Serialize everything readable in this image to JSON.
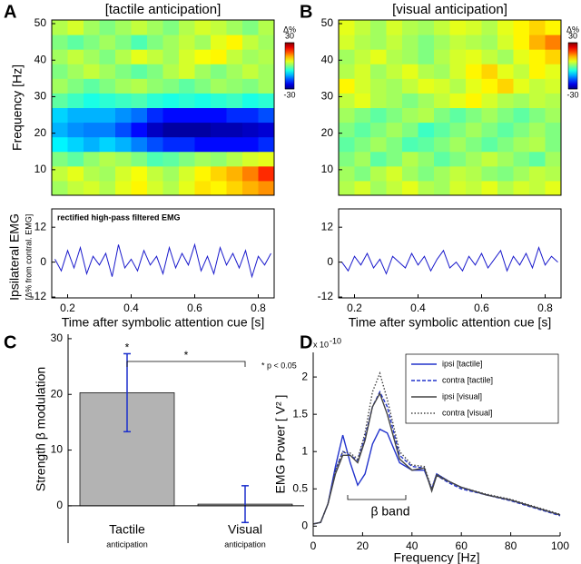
{
  "chart_data": [
    {
      "type": "heatmap",
      "panel": "A",
      "title": "[tactile anticipation]",
      "ylabel": "Frequency [Hz]",
      "x_edges": [
        0.15,
        0.2,
        0.25,
        0.3,
        0.35,
        0.4,
        0.45,
        0.5,
        0.55,
        0.6,
        0.65,
        0.7,
        0.75,
        0.8,
        0.85
      ],
      "y_edges": [
        3,
        7,
        11,
        15,
        19,
        23,
        27,
        31,
        35,
        39,
        43,
        47,
        51
      ],
      "ylim": [
        3,
        51
      ],
      "yticks": [
        10,
        20,
        30,
        40,
        50
      ],
      "clim": [
        -30,
        30
      ],
      "cticks": [
        30,
        -30
      ],
      "colorbar_label": "Δ%",
      "z": [
        [
          2,
          4,
          5,
          3,
          6,
          8,
          5,
          3,
          6,
          9,
          8,
          10,
          12,
          14
        ],
        [
          4,
          6,
          3,
          2,
          5,
          7,
          4,
          2,
          5,
          8,
          10,
          12,
          15,
          20
        ],
        [
          0,
          -2,
          1,
          3,
          2,
          0,
          -3,
          -2,
          0,
          2,
          1,
          3,
          5,
          6
        ],
        [
          -8,
          -10,
          -12,
          -10,
          -12,
          -15,
          -18,
          -20,
          -20,
          -22,
          -22,
          -22,
          -22,
          -20
        ],
        [
          -12,
          -14,
          -15,
          -15,
          -18,
          -22,
          -26,
          -28,
          -28,
          -28,
          -27,
          -27,
          -26,
          -25
        ],
        [
          -10,
          -12,
          -12,
          -12,
          -14,
          -16,
          -20,
          -22,
          -22,
          -22,
          -22,
          -20,
          -20,
          -18
        ],
        [
          -2,
          -4,
          -6,
          -5,
          -4,
          -3,
          -5,
          -6,
          -5,
          -6,
          -5,
          -4,
          -6,
          -5
        ],
        [
          2,
          0,
          -2,
          0,
          2,
          3,
          1,
          0,
          -2,
          0,
          2,
          1,
          0,
          2
        ],
        [
          0,
          2,
          4,
          2,
          0,
          -2,
          0,
          3,
          5,
          2,
          0,
          2,
          4,
          2
        ],
        [
          2,
          4,
          2,
          0,
          3,
          6,
          4,
          2,
          5,
          7,
          8,
          4,
          2,
          3
        ],
        [
          0,
          -2,
          0,
          2,
          0,
          -3,
          0,
          2,
          4,
          2,
          6,
          8,
          4,
          2
        ],
        [
          3,
          5,
          2,
          0,
          2,
          4,
          2,
          0,
          3,
          5,
          4,
          2,
          0,
          3
        ]
      ]
    },
    {
      "type": "line",
      "annotation": "rectified high-pass filtered EMG",
      "ylabel": "Ipsilateral EMG",
      "ylabel2": "[Δ% from contral. EMG]",
      "xlabel": "Time after symbolic attention cue [s]",
      "color": "#1a1acc",
      "x": [
        0.16,
        0.18,
        0.2,
        0.22,
        0.24,
        0.26,
        0.28,
        0.3,
        0.32,
        0.34,
        0.36,
        0.38,
        0.4,
        0.42,
        0.44,
        0.46,
        0.48,
        0.5,
        0.52,
        0.54,
        0.56,
        0.58,
        0.6,
        0.62,
        0.64,
        0.66,
        0.68,
        0.7,
        0.72,
        0.74,
        0.76,
        0.78,
        0.8,
        0.82,
        0.84
      ],
      "values": [
        1,
        -3,
        4,
        -2,
        5,
        -4,
        2,
        -1,
        3,
        -5,
        6,
        -2,
        1,
        -3,
        4,
        -1,
        2,
        -4,
        5,
        -2,
        3,
        -1,
        6,
        -3,
        2,
        -4,
        5,
        -1,
        3,
        -2,
        4,
        -5,
        2,
        -1,
        3
      ],
      "xlim": [
        0.15,
        0.85
      ],
      "ylim": [
        -12.3,
        18.3
      ],
      "xticks": [
        0.2,
        0.4,
        0.6,
        0.8
      ],
      "yticks": [
        -12,
        0,
        12
      ]
    },
    {
      "type": "heatmap",
      "panel": "B",
      "title": "[visual anticipation]",
      "x_edges": [
        0.15,
        0.2,
        0.25,
        0.3,
        0.35,
        0.4,
        0.45,
        0.5,
        0.55,
        0.6,
        0.65,
        0.7,
        0.75,
        0.8,
        0.85
      ],
      "y_edges": [
        3,
        7,
        11,
        15,
        19,
        23,
        27,
        31,
        35,
        39,
        43,
        47,
        51
      ],
      "ylim": [
        3,
        51
      ],
      "yticks": [
        10,
        20,
        30,
        40,
        50
      ],
      "clim": [
        -30,
        30
      ],
      "cticks": [
        30,
        -30
      ],
      "colorbar_label": "Δ%",
      "z": [
        [
          3,
          5,
          2,
          4,
          6,
          3,
          2,
          5,
          4,
          6,
          3,
          5,
          4,
          6
        ],
        [
          2,
          0,
          3,
          5,
          2,
          0,
          2,
          4,
          3,
          1,
          0,
          2,
          4,
          3
        ],
        [
          0,
          2,
          -2,
          0,
          3,
          1,
          -2,
          0,
          2,
          4,
          2,
          0,
          -2,
          2
        ],
        [
          -2,
          0,
          2,
          0,
          -3,
          -2,
          0,
          2,
          0,
          -2,
          0,
          2,
          3,
          0
        ],
        [
          0,
          -2,
          0,
          2,
          0,
          -4,
          -2,
          0,
          2,
          0,
          -2,
          0,
          2,
          0
        ],
        [
          2,
          0,
          -2,
          0,
          2,
          3,
          0,
          -2,
          0,
          2,
          0,
          -2,
          0,
          2
        ],
        [
          4,
          6,
          3,
          2,
          0,
          2,
          4,
          6,
          8,
          5,
          3,
          2,
          4,
          3
        ],
        [
          8,
          5,
          3,
          2,
          4,
          6,
          5,
          3,
          6,
          8,
          10,
          6,
          4,
          5
        ],
        [
          3,
          5,
          2,
          4,
          6,
          3,
          2,
          5,
          8,
          10,
          6,
          4,
          8,
          6
        ],
        [
          2,
          4,
          6,
          3,
          2,
          0,
          3,
          5,
          6,
          4,
          2,
          6,
          8,
          10
        ],
        [
          5,
          3,
          2,
          4,
          2,
          0,
          2,
          4,
          3,
          2,
          5,
          8,
          12,
          15
        ],
        [
          6,
          4,
          2,
          5,
          3,
          2,
          4,
          6,
          5,
          3,
          6,
          8,
          10,
          8
        ]
      ]
    },
    {
      "type": "line",
      "xlabel": "Time after symbolic attention cue [s]",
      "color": "#1a1acc",
      "x": [
        0.16,
        0.18,
        0.2,
        0.22,
        0.24,
        0.26,
        0.28,
        0.3,
        0.32,
        0.34,
        0.36,
        0.38,
        0.4,
        0.42,
        0.44,
        0.46,
        0.48,
        0.5,
        0.52,
        0.54,
        0.56,
        0.58,
        0.6,
        0.62,
        0.64,
        0.66,
        0.68,
        0.7,
        0.72,
        0.74,
        0.76,
        0.78,
        0.8,
        0.82,
        0.84
      ],
      "values": [
        0,
        -3,
        2,
        -1,
        3,
        -2,
        1,
        -4,
        2,
        0,
        -2,
        3,
        -1,
        2,
        -3,
        1,
        4,
        -2,
        0,
        -3,
        2,
        -1,
        3,
        -2,
        1,
        4,
        -3,
        2,
        -1,
        3,
        -2,
        5,
        -1,
        2,
        0
      ],
      "xlim": [
        0.15,
        0.85
      ],
      "ylim": [
        -12.3,
        18.3
      ],
      "xticks": [
        0.2,
        0.4,
        0.6,
        0.8
      ],
      "yticks": [
        -12,
        0,
        12
      ]
    },
    {
      "type": "bar",
      "panel": "C",
      "ylabel": "Strength β modulation",
      "categories": [
        "Tactile",
        "Visual"
      ],
      "category_sublabels": [
        "anticipation",
        "anticipation"
      ],
      "values": [
        20.3,
        0.3
      ],
      "errors": [
        7,
        3.3
      ],
      "color": "#b3b3b3",
      "error_color": "#1a2ecc",
      "ylim": [
        -6.7,
        30.8
      ],
      "yticks": [
        0,
        10,
        20,
        30
      ],
      "annotations": [
        "*",
        "*",
        "* p < 0.05"
      ]
    },
    {
      "type": "multiline",
      "panel": "D",
      "xlabel": "Frequency [Hz]",
      "ylabel": "EMG Power [ V² ]",
      "y_multiplier": "x 10",
      "y_multiplier_exp": "-10",
      "annotation": "β band",
      "legend": "upper right",
      "x": [
        0,
        3,
        6,
        9,
        12,
        15,
        18,
        21,
        24,
        27,
        30,
        35,
        40,
        45,
        48,
        50,
        55,
        60,
        70,
        80,
        90,
        100
      ],
      "xlim": [
        0,
        100
      ],
      "ylim": [
        -0.13,
        2.33
      ],
      "xticks": [
        0,
        20,
        40,
        60,
        80,
        100
      ],
      "yticks": [
        0,
        0.5,
        1,
        1.5,
        2
      ],
      "series": [
        {
          "name": "ipsi [tactile]",
          "color": "#2233cc",
          "dash": "solid",
          "values": [
            0.03,
            0.05,
            0.3,
            0.8,
            1.22,
            0.85,
            0.55,
            0.7,
            1.1,
            1.3,
            1.25,
            0.85,
            0.75,
            0.75,
            0.5,
            0.7,
            0.6,
            0.52,
            0.42,
            0.35,
            0.25,
            0.15
          ]
        },
        {
          "name": "contra [tactile]",
          "color": "#2233cc",
          "dash": "dashed",
          "values": [
            0.03,
            0.05,
            0.3,
            0.75,
            1.0,
            0.95,
            0.88,
            1.2,
            1.6,
            1.8,
            1.6,
            0.95,
            0.8,
            0.78,
            0.48,
            0.68,
            0.58,
            0.5,
            0.42,
            0.34,
            0.24,
            0.14
          ]
        },
        {
          "name": "ipsi [visual]",
          "color": "#444444",
          "dash": "solid",
          "values": [
            0.03,
            0.05,
            0.3,
            0.7,
            0.95,
            0.95,
            0.85,
            1.15,
            1.6,
            1.78,
            1.5,
            0.9,
            0.75,
            0.78,
            0.47,
            0.68,
            0.6,
            0.52,
            0.42,
            0.35,
            0.25,
            0.15
          ]
        },
        {
          "name": "contra [visual]",
          "color": "#444444",
          "dash": "dotted",
          "values": [
            0.03,
            0.05,
            0.3,
            0.75,
            1.0,
            0.98,
            0.9,
            1.25,
            1.8,
            2.05,
            1.7,
            1.0,
            0.82,
            0.8,
            0.5,
            0.7,
            0.6,
            0.52,
            0.43,
            0.36,
            0.26,
            0.16
          ]
        }
      ]
    }
  ]
}
